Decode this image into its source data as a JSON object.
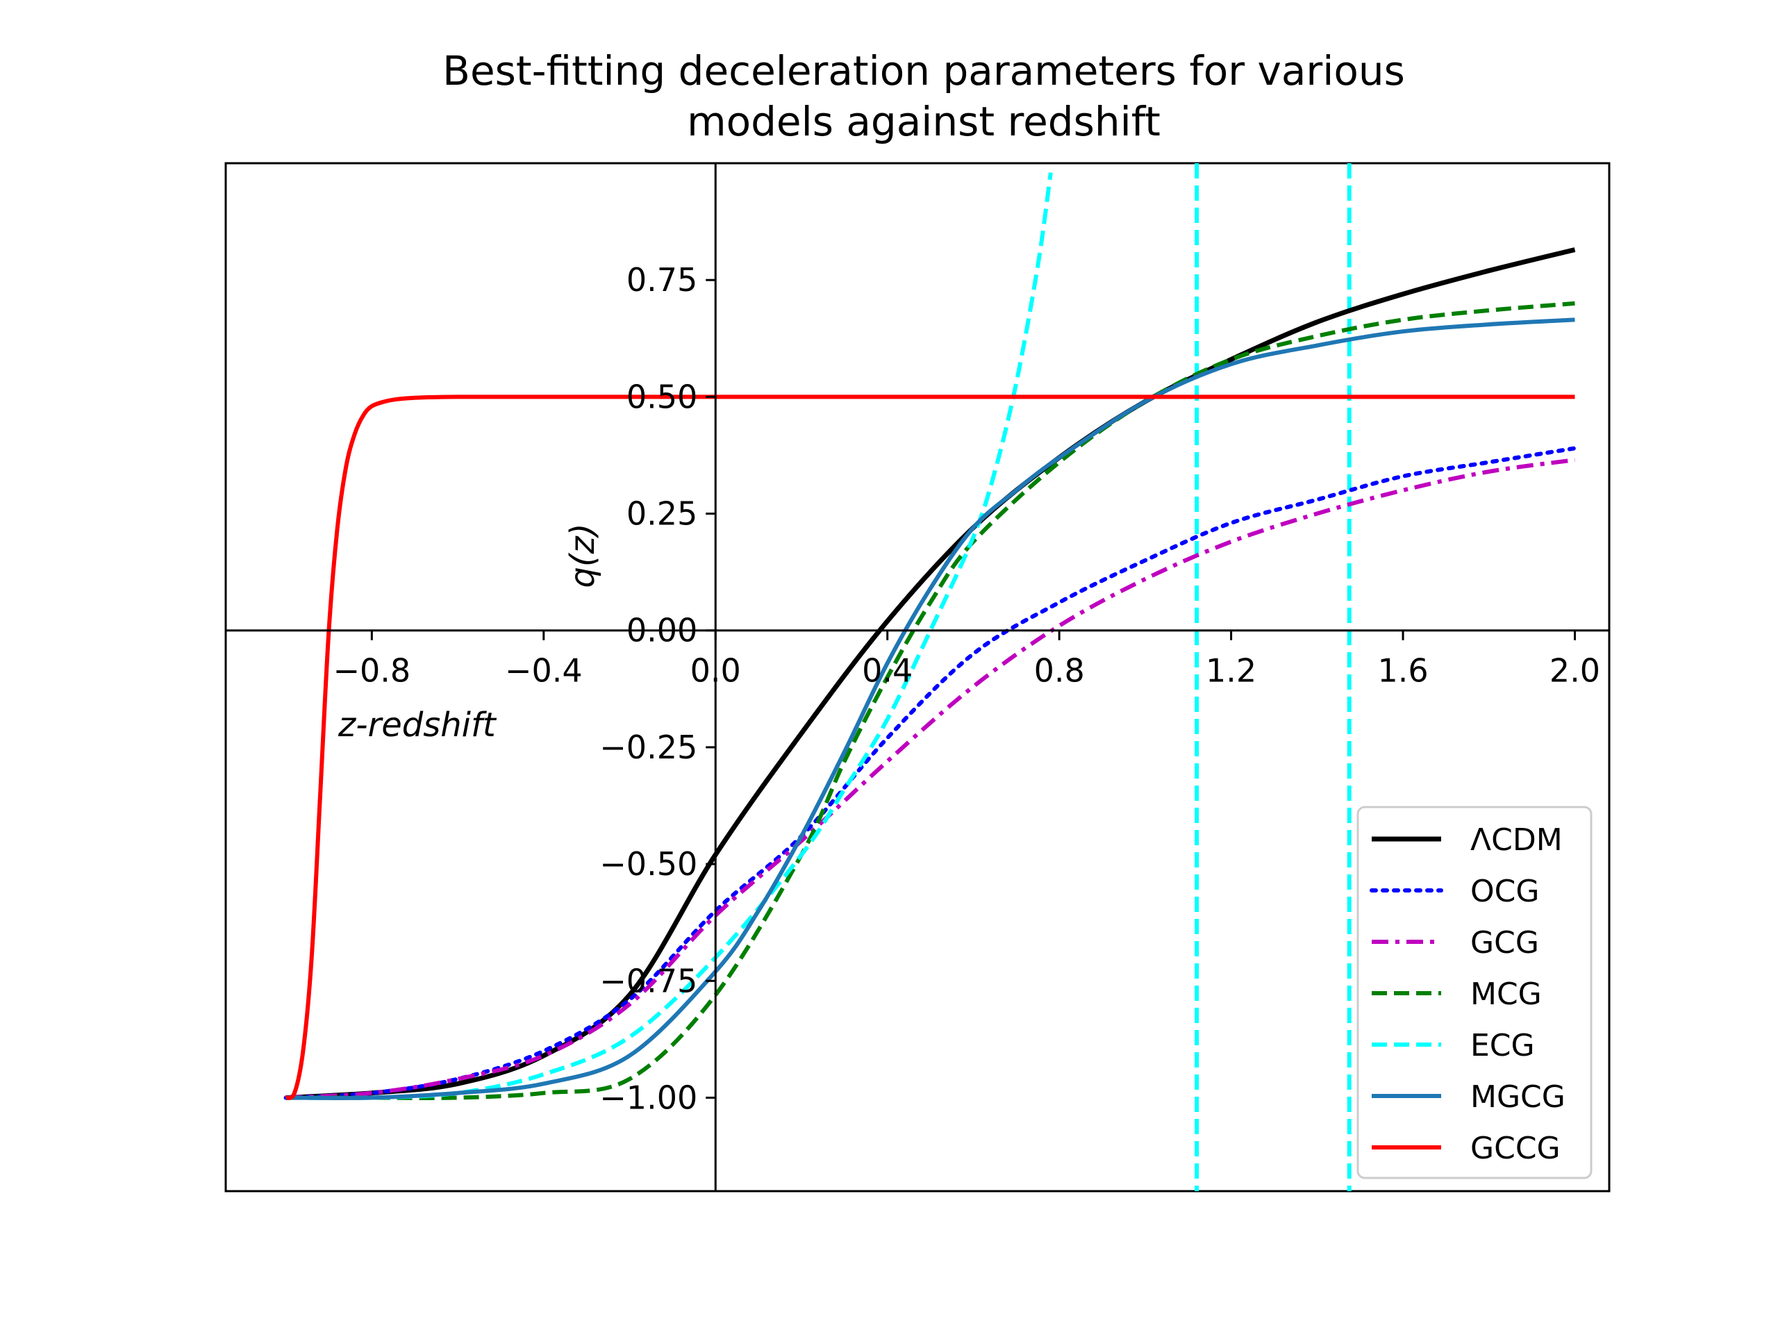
{
  "chart_data": {
    "type": "line",
    "title_lines": [
      "Best-fitting deceleration parameters for various",
      "models against redshift"
    ],
    "xlabel": "z-redshift",
    "ylabel": "q(z)",
    "xlim": [
      -1.14,
      2.08
    ],
    "ylim": [
      -1.2,
      1.0
    ],
    "xticks": [
      -0.8,
      -0.4,
      0.0,
      0.4,
      0.8,
      1.2,
      1.6,
      2.0
    ],
    "xtick_labels": [
      "−0.8",
      "−0.4",
      "0.0",
      "0.4",
      "0.8",
      "1.2",
      "1.6",
      "2.0"
    ],
    "yticks": [
      0.75,
      0.5,
      0.25,
      0.0,
      -0.25,
      -0.5,
      -0.75,
      -1.0
    ],
    "ytick_labels": [
      "0.75",
      "0.50",
      "0.25",
      "0.00",
      "−0.25",
      "−0.50",
      "−0.75",
      "−1.00"
    ],
    "axes_through_origin": true,
    "grid": false,
    "legend_position": "lower-right",
    "vertical_lines": [
      {
        "x": 1.12,
        "color": "#00ffff",
        "style": "dashed"
      },
      {
        "x": 1.475,
        "color": "#00ffff",
        "style": "dashed"
      }
    ],
    "series": [
      {
        "name": "ΛCDM",
        "color": "#000000",
        "style": "solid",
        "width": 7,
        "x": [
          -1.0,
          -0.8,
          -0.6,
          -0.4,
          -0.2,
          0.0,
          0.2,
          0.4,
          0.6,
          0.8,
          1.0,
          1.2,
          1.4,
          1.6,
          1.8,
          2.0
        ],
        "y": [
          -1.0,
          -0.99,
          -0.97,
          -0.91,
          -0.78,
          -0.48,
          -0.22,
          0.02,
          0.22,
          0.37,
          0.49,
          0.58,
          0.66,
          0.72,
          0.77,
          0.815
        ]
      },
      {
        "name": "OCG",
        "color": "#0000ff",
        "style": "dotted",
        "width": 6,
        "x": [
          -1.0,
          -0.8,
          -0.6,
          -0.4,
          -0.2,
          0.0,
          0.2,
          0.4,
          0.6,
          0.8,
          1.0,
          1.2,
          1.4,
          1.6,
          1.8,
          2.0
        ],
        "y": [
          -1.0,
          -0.99,
          -0.96,
          -0.9,
          -0.79,
          -0.6,
          -0.44,
          -0.23,
          -0.05,
          0.06,
          0.15,
          0.23,
          0.28,
          0.33,
          0.36,
          0.39
        ]
      },
      {
        "name": "GCG",
        "color": "#bf00bf",
        "style": "dashdot",
        "width": 6,
        "x": [
          -1.0,
          -0.8,
          -0.6,
          -0.4,
          -0.2,
          0.0,
          0.2,
          0.4,
          0.6,
          0.8,
          1.0,
          1.2,
          1.4,
          1.6,
          1.8,
          2.0
        ],
        "y": [
          -1.0,
          -0.99,
          -0.96,
          -0.91,
          -0.8,
          -0.61,
          -0.45,
          -0.28,
          -0.12,
          0.01,
          0.11,
          0.19,
          0.25,
          0.3,
          0.34,
          0.365
        ]
      },
      {
        "name": "MCG",
        "color": "#007f00",
        "style": "dashed",
        "width": 6,
        "x": [
          -1.0,
          -0.8,
          -0.6,
          -0.4,
          -0.2,
          0.0,
          0.2,
          0.3,
          0.4,
          0.5,
          0.6,
          0.8,
          1.0,
          1.2,
          1.4,
          1.6,
          1.8,
          2.0
        ],
        "y": [
          -1.0,
          -1.0,
          -1.0,
          -0.99,
          -0.96,
          -0.78,
          -0.48,
          -0.28,
          -0.1,
          0.06,
          0.19,
          0.36,
          0.49,
          0.58,
          0.63,
          0.665,
          0.685,
          0.7
        ]
      },
      {
        "name": "ECG",
        "color": "#00ffff",
        "style": "dashed",
        "width": 6,
        "x": [
          -1.0,
          -0.8,
          -0.6,
          -0.4,
          -0.2,
          0.0,
          0.2,
          0.3,
          0.4,
          0.5,
          0.6,
          0.65,
          0.7,
          0.75,
          0.78
        ],
        "y": [
          -1.0,
          -1.0,
          -0.99,
          -0.95,
          -0.87,
          -0.7,
          -0.48,
          -0.34,
          -0.19,
          0.0,
          0.2,
          0.34,
          0.53,
          0.78,
          0.98
        ]
      },
      {
        "name": "MGCG",
        "color": "#1f77b4",
        "style": "solid",
        "width": 6,
        "x": [
          -1.0,
          -0.8,
          -0.6,
          -0.4,
          -0.2,
          0.0,
          0.1,
          0.2,
          0.3,
          0.4,
          0.5,
          0.6,
          0.7,
          0.8,
          1.0,
          1.2,
          1.4,
          1.6,
          1.8,
          2.0
        ],
        "y": [
          -1.0,
          -1.0,
          -0.99,
          -0.97,
          -0.91,
          -0.73,
          -0.6,
          -0.44,
          -0.26,
          -0.07,
          0.09,
          0.22,
          0.3,
          0.37,
          0.49,
          0.57,
          0.61,
          0.64,
          0.655,
          0.665
        ]
      },
      {
        "name": "GCCG",
        "color": "#ff0000",
        "style": "solid",
        "width": 6,
        "x": [
          -1.0,
          -0.98,
          -0.96,
          -0.94,
          -0.92,
          -0.9,
          -0.88,
          -0.86,
          -0.84,
          -0.82,
          -0.8,
          -0.77,
          -0.74,
          -0.7,
          -0.6,
          -0.4,
          0.0,
          1.0,
          2.0
        ],
        "y": [
          -1.0,
          -0.99,
          -0.9,
          -0.7,
          -0.35,
          0.0,
          0.22,
          0.35,
          0.42,
          0.46,
          0.48,
          0.49,
          0.495,
          0.498,
          0.5,
          0.5,
          0.5,
          0.5,
          0.5
        ]
      }
    ]
  }
}
